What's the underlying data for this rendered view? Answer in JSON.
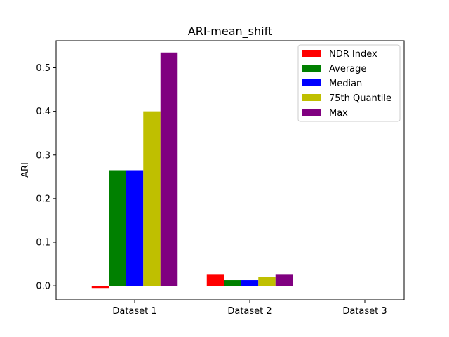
{
  "chart_data": {
    "type": "bar",
    "title": "ARI-mean_shift",
    "xlabel": "",
    "ylabel": "ARI",
    "categories": [
      "Dataset 1",
      "Dataset 2",
      "Dataset 3"
    ],
    "ylim": [
      -0.032,
      0.562
    ],
    "yticks": [
      0.0,
      0.1,
      0.2,
      0.3,
      0.4,
      0.5
    ],
    "ytick_labels": [
      "0.0",
      "0.1",
      "0.2",
      "0.3",
      "0.4",
      "0.5"
    ],
    "grid": false,
    "legend_position": "top-right",
    "series": [
      {
        "name": "NDR Index",
        "color": "#ff0000",
        "values": [
          -0.005,
          0.027,
          0.0
        ]
      },
      {
        "name": "Average",
        "color": "#008000",
        "values": [
          0.265,
          0.013,
          0.0
        ]
      },
      {
        "name": "Median",
        "color": "#0000ff",
        "values": [
          0.265,
          0.013,
          0.0
        ]
      },
      {
        "name": "75th Quantile",
        "color": "#bfbf00",
        "values": [
          0.4,
          0.02,
          0.0
        ]
      },
      {
        "name": "Max",
        "color": "#800080",
        "values": [
          0.535,
          0.027,
          0.0
        ]
      }
    ]
  }
}
